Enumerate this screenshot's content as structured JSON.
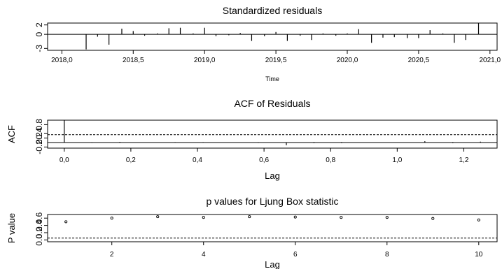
{
  "chart_data": [
    {
      "type": "bar",
      "title": "Standardized residuals",
      "xlabel": "Time",
      "ylabel": "",
      "xlim": [
        2017.9,
        2021.05
      ],
      "ylim": [
        -3.4,
        2.4
      ],
      "x_ticks": [
        2018.0,
        2018.5,
        2019.0,
        2019.5,
        2020.0,
        2020.5,
        2021.0
      ],
      "x_tick_labels": [
        "2018,0",
        "2018,5",
        "2019,0",
        "2019,5",
        "2020,0",
        "2020,5",
        "2021,0"
      ],
      "y_ticks": [
        2,
        0,
        -3
      ],
      "y_tick_labels": [
        "2",
        "0",
        "-3"
      ],
      "x": [
        2018.08,
        2018.17,
        2018.25,
        2018.33,
        2018.42,
        2018.5,
        2018.58,
        2018.67,
        2018.75,
        2018.83,
        2018.92,
        2019.0,
        2019.08,
        2019.17,
        2019.25,
        2019.33,
        2019.42,
        2019.5,
        2019.58,
        2019.67,
        2019.75,
        2019.83,
        2019.92,
        2020.0,
        2020.08,
        2020.17,
        2020.25,
        2020.33,
        2020.42,
        2020.5,
        2020.58,
        2020.67,
        2020.75,
        2020.83,
        2020.92
      ],
      "values": [
        0.0,
        -3.2,
        -0.5,
        -2.2,
        1.2,
        0.7,
        -0.3,
        0.2,
        1.3,
        1.4,
        0.2,
        1.4,
        -0.4,
        -0.2,
        0.3,
        -1.4,
        -0.4,
        0.5,
        -1.4,
        -0.3,
        -1.2,
        0.2,
        -0.3,
        0.2,
        1.1,
        -1.8,
        -0.7,
        -0.6,
        -0.8,
        -0.8,
        0.9,
        0.2,
        -1.8,
        -1.2,
        2.4
      ],
      "grid": false,
      "legend": "none"
    },
    {
      "type": "bar",
      "title": "ACF of Residuals",
      "xlabel": "Lag",
      "ylabel": "ACF",
      "xlim": [
        -0.05,
        1.3
      ],
      "ylim": [
        -0.25,
        1.0
      ],
      "x_ticks": [
        0.0,
        0.2,
        0.4,
        0.6,
        0.8,
        1.0,
        1.2
      ],
      "x_tick_labels": [
        "0,0",
        "0,2",
        "0,4",
        "0,6",
        "0,8",
        "1,0",
        "1,2"
      ],
      "y_ticks": [
        0.8,
        0.4,
        0.2,
        -0.2
      ],
      "y_tick_labels": [
        "0.8",
        "0.4",
        "0.2",
        "-0.2"
      ],
      "x": [
        0.0,
        0.083,
        0.167,
        0.25,
        0.333,
        0.417,
        0.5,
        0.583,
        0.667,
        0.75,
        0.833,
        0.917,
        1.0,
        1.083,
        1.167,
        1.25
      ],
      "values": [
        1.0,
        -0.02,
        0.03,
        -0.01,
        0.02,
        0.02,
        -0.01,
        -0.02,
        -0.12,
        -0.03,
        -0.03,
        0.0,
        -0.01,
        0.06,
        -0.03,
        0.04
      ],
      "confidence_bound": 0.35,
      "grid": false,
      "legend": "none"
    },
    {
      "type": "scatter",
      "title": "p values for Ljung Box statistic",
      "xlabel": "Lag",
      "ylabel": "P value",
      "xlim": [
        0.6,
        10.4
      ],
      "ylim": [
        -0.05,
        0.7
      ],
      "x_ticks": [
        2,
        4,
        6,
        8,
        10
      ],
      "x_tick_labels": [
        "2",
        "4",
        "6",
        "8",
        "10"
      ],
      "y_ticks": [
        0.6,
        0.4,
        0.2,
        0.0
      ],
      "y_tick_labels": [
        "0.6",
        "0.4",
        "0.2",
        "0.0"
      ],
      "x": [
        1,
        2,
        3,
        4,
        5,
        6,
        7,
        8,
        9,
        10
      ],
      "values": [
        0.5,
        0.6,
        0.64,
        0.62,
        0.64,
        0.63,
        0.62,
        0.62,
        0.59,
        0.55
      ],
      "significance_level": 0.05,
      "grid": false,
      "legend": "none"
    }
  ]
}
